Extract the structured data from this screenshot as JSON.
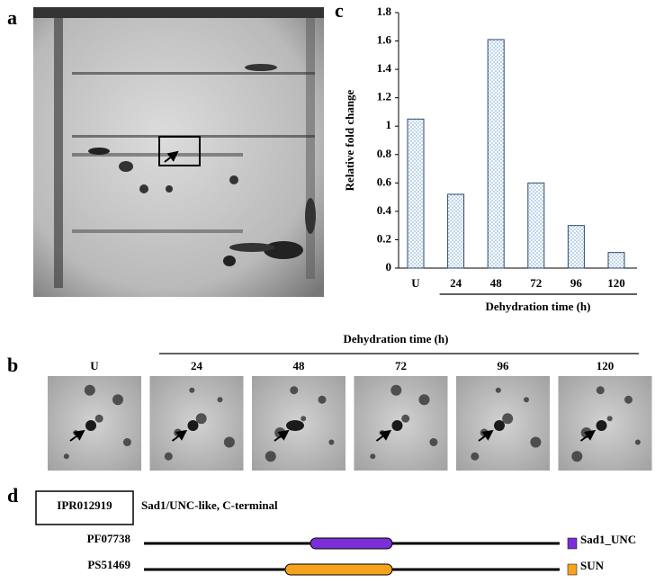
{
  "panel_labels": {
    "a": "a",
    "b": "b",
    "c": "c",
    "d": "d"
  },
  "chart_data": {
    "type": "bar",
    "categories": [
      "U",
      "24",
      "48",
      "72",
      "96",
      "120"
    ],
    "values": [
      1.05,
      0.52,
      1.61,
      0.6,
      0.3,
      0.11
    ],
    "color": "#8fb8dc",
    "ylim": [
      0,
      1.8
    ],
    "yticks": [
      0,
      0.2,
      0.4,
      0.6,
      0.8,
      1,
      1.2,
      1.4,
      1.6,
      1.8
    ],
    "y_label": "Relative fold change",
    "x_label": "Dehydration time (h)"
  },
  "panel_b": {
    "header": "Dehydration time (h)",
    "lanes": [
      "U",
      "24",
      "48",
      "72",
      "96",
      "120"
    ]
  },
  "panel_d": {
    "accession": "IPR012919",
    "description": "Sad1/UNC-like, C-terminal",
    "rows": [
      {
        "id": "PF07738",
        "domain": "Sad1_UNC",
        "color": "#7b2fd6"
      },
      {
        "id": "PS51469",
        "domain": "SUN",
        "color": "#f7a21b"
      }
    ]
  }
}
